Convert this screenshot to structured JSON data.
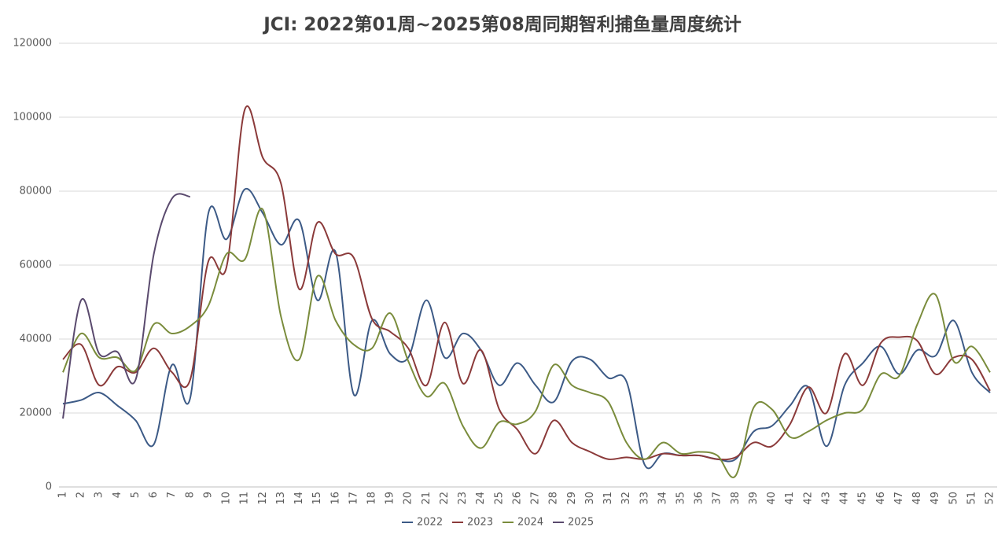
{
  "chart_data": {
    "type": "line",
    "title": "JCI: 2022第01周~2025第08周同期智利捕鱼量周度统计",
    "categories": [
      "1",
      "2",
      "3",
      "4",
      "5",
      "6",
      "7",
      "8",
      "9",
      "10",
      "11",
      "12",
      "13",
      "14",
      "15",
      "16",
      "17",
      "18",
      "19",
      "20",
      "21",
      "22",
      "23",
      "24",
      "25",
      "26",
      "27",
      "28",
      "29",
      "30",
      "31",
      "32",
      "33",
      "34",
      "35",
      "36",
      "37",
      "38",
      "39",
      "40",
      "41",
      "42",
      "43",
      "44",
      "45",
      "46",
      "47",
      "48",
      "49",
      "50",
      "51",
      "52"
    ],
    "series": [
      {
        "name": "2022",
        "color": "#3c5a86",
        "values": [
          22500,
          23500,
          25500,
          22000,
          18000,
          11500,
          33000,
          24000,
          74000,
          67000,
          80500,
          74000,
          65500,
          72000,
          50500,
          63500,
          25000,
          45000,
          36000,
          35000,
          50500,
          35000,
          41500,
          37000,
          27500,
          33500,
          27500,
          23000,
          34000,
          34500,
          29500,
          28500,
          6000,
          9000,
          8500,
          8500,
          7500,
          7500,
          15000,
          16500,
          22000,
          27000,
          11000,
          27500,
          33500,
          38000,
          30500,
          37000,
          35500,
          45000,
          31000,
          25500
        ]
      },
      {
        "name": "2023",
        "color": "#8b3a3a",
        "values": [
          34500,
          38500,
          27500,
          32500,
          31000,
          37500,
          31000,
          29000,
          61000,
          59500,
          102000,
          89000,
          82000,
          53500,
          71500,
          63000,
          62000,
          45500,
          42000,
          37500,
          27500,
          44500,
          28000,
          37000,
          21000,
          15500,
          9000,
          18000,
          12000,
          9500,
          7500,
          8000,
          7500,
          9000,
          8500,
          8500,
          7500,
          8000,
          12000,
          11000,
          17000,
          27000,
          20000,
          36000,
          27500,
          39000,
          40500,
          39500,
          30500,
          35000,
          34500,
          26000
        ]
      },
      {
        "name": "2024",
        "color": "#7a8c3c",
        "values": [
          31000,
          41500,
          35000,
          35000,
          31500,
          44000,
          41500,
          43500,
          49000,
          63000,
          61500,
          75000,
          46000,
          34500,
          57000,
          45000,
          38500,
          37500,
          47000,
          34000,
          24500,
          28000,
          16500,
          10500,
          17500,
          17000,
          20500,
          33000,
          27500,
          25500,
          23000,
          12000,
          7500,
          12000,
          9000,
          9500,
          8500,
          3000,
          21500,
          21000,
          13500,
          15000,
          18000,
          20000,
          21000,
          30500,
          30000,
          44000,
          52000,
          34000,
          38000,
          31000
        ]
      },
      {
        "name": "2025",
        "color": "#5a4a6e",
        "values": [
          18500,
          50500,
          36000,
          36500,
          29000,
          63000,
          78000,
          78500,
          null,
          null,
          null,
          null,
          null,
          null,
          null,
          null,
          null,
          null,
          null,
          null,
          null,
          null,
          null,
          null,
          null,
          null,
          null,
          null,
          null,
          null,
          null,
          null,
          null,
          null,
          null,
          null,
          null,
          null,
          null,
          null,
          null,
          null,
          null,
          null,
          null,
          null,
          null,
          null,
          null,
          null,
          null,
          null
        ]
      }
    ],
    "ylim": [
      0,
      120000
    ],
    "yticks": [
      0,
      20000,
      40000,
      60000,
      80000,
      100000,
      120000
    ],
    "grid": true,
    "legend": "bottom"
  }
}
